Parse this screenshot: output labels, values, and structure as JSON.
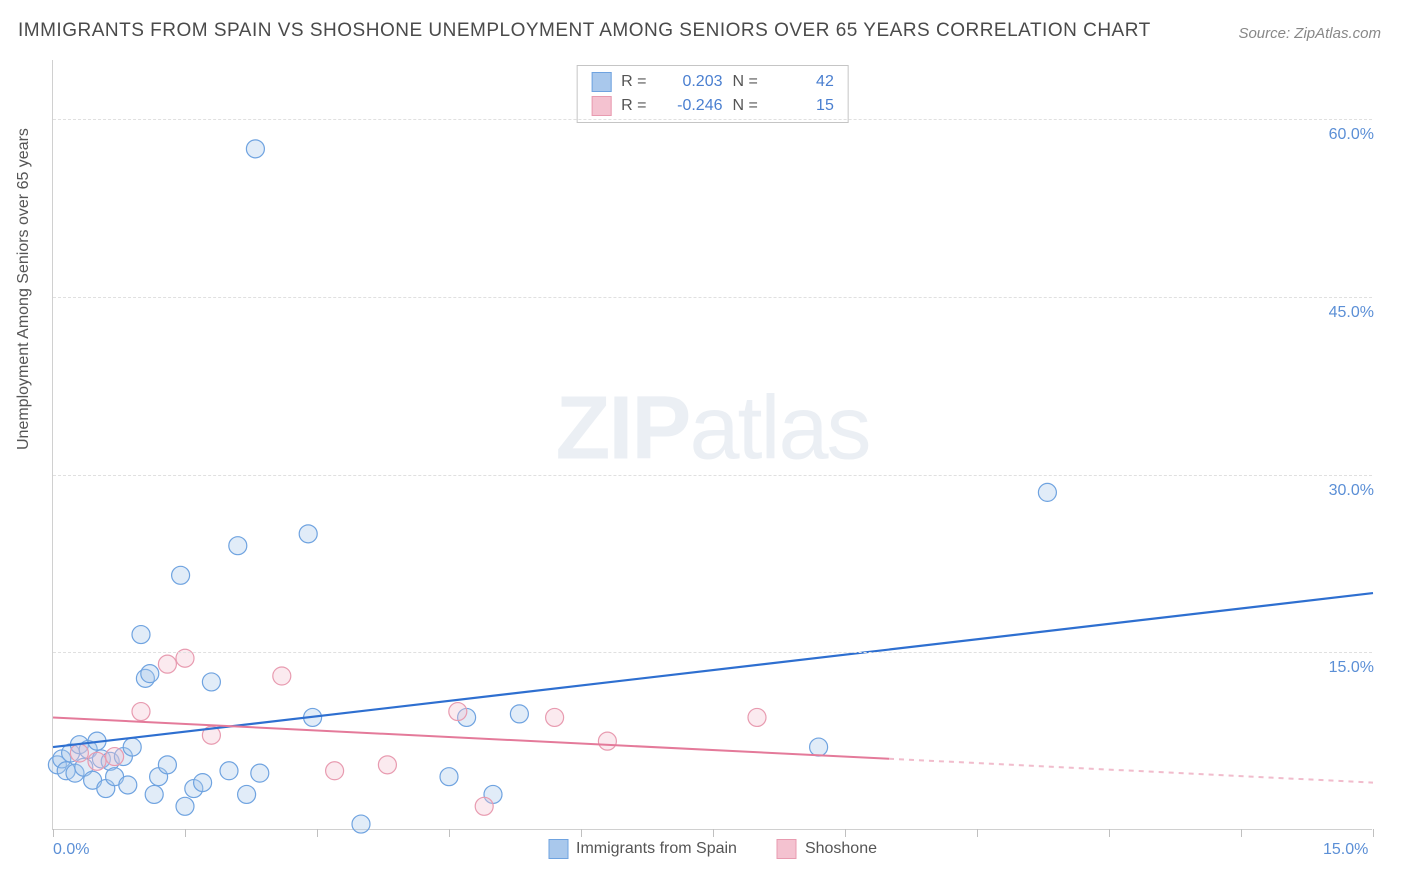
{
  "title": "IMMIGRANTS FROM SPAIN VS SHOSHONE UNEMPLOYMENT AMONG SENIORS OVER 65 YEARS CORRELATION CHART",
  "source": "Source: ZipAtlas.com",
  "y_axis_title": "Unemployment Among Seniors over 65 years",
  "watermark_bold": "ZIP",
  "watermark_light": "atlas",
  "chart": {
    "type": "scatter",
    "xlim": [
      0,
      15
    ],
    "ylim": [
      0,
      65
    ],
    "x_ticks": [
      0,
      1.5,
      3,
      4.5,
      6,
      7.5,
      9,
      10.5,
      12,
      13.5,
      15
    ],
    "x_tick_labels_shown": {
      "0": "0.0%",
      "15": "15.0%"
    },
    "y_gridlines": [
      15,
      30,
      45,
      60
    ],
    "y_tick_labels": {
      "15": "15.0%",
      "30": "30.0%",
      "45": "45.0%",
      "60": "60.0%"
    },
    "background_color": "#ffffff",
    "grid_color": "#e0e0e0",
    "axis_color": "#d0d0d0",
    "marker_radius": 9,
    "marker_stroke_width": 1.2,
    "marker_fill_opacity": 0.35,
    "series": [
      {
        "name": "Immigrants from Spain",
        "color_stroke": "#6fa3e0",
        "color_fill": "#a9c8ec",
        "r": 0.203,
        "n": 42,
        "trend_line": {
          "x1": 0,
          "y1": 7.0,
          "x2": 15,
          "y2": 20.0,
          "color": "#2e6fd0",
          "width": 2.2,
          "dash_from_x": null
        },
        "points": [
          [
            0.05,
            5.5
          ],
          [
            0.1,
            6.0
          ],
          [
            0.15,
            5.0
          ],
          [
            0.2,
            6.5
          ],
          [
            0.25,
            4.8
          ],
          [
            0.3,
            7.2
          ],
          [
            0.35,
            5.3
          ],
          [
            0.4,
            6.8
          ],
          [
            0.45,
            4.2
          ],
          [
            0.5,
            7.5
          ],
          [
            0.55,
            6.0
          ],
          [
            0.6,
            3.5
          ],
          [
            0.65,
            5.8
          ],
          [
            0.7,
            4.5
          ],
          [
            0.8,
            6.2
          ],
          [
            0.85,
            3.8
          ],
          [
            0.9,
            7.0
          ],
          [
            1.0,
            16.5
          ],
          [
            1.05,
            12.8
          ],
          [
            1.1,
            13.2
          ],
          [
            1.15,
            3.0
          ],
          [
            1.2,
            4.5
          ],
          [
            1.3,
            5.5
          ],
          [
            1.45,
            21.5
          ],
          [
            1.5,
            2.0
          ],
          [
            1.6,
            3.5
          ],
          [
            1.7,
            4.0
          ],
          [
            1.8,
            12.5
          ],
          [
            2.0,
            5.0
          ],
          [
            2.1,
            24.0
          ],
          [
            2.2,
            3.0
          ],
          [
            2.3,
            57.5
          ],
          [
            2.35,
            4.8
          ],
          [
            2.9,
            25.0
          ],
          [
            2.95,
            9.5
          ],
          [
            3.5,
            0.5
          ],
          [
            4.5,
            4.5
          ],
          [
            4.7,
            9.5
          ],
          [
            5.0,
            3.0
          ],
          [
            5.3,
            9.8
          ],
          [
            8.7,
            7.0
          ],
          [
            11.3,
            28.5
          ]
        ]
      },
      {
        "name": "Shoshone",
        "color_stroke": "#e89bb0",
        "color_fill": "#f4c2d0",
        "r": -0.246,
        "n": 15,
        "trend_line": {
          "x1": 0,
          "y1": 9.5,
          "x2": 15,
          "y2": 4.0,
          "color": "#e47a9a",
          "width": 2,
          "dash_from_x": 9.5
        },
        "points": [
          [
            0.3,
            6.5
          ],
          [
            0.5,
            5.8
          ],
          [
            0.7,
            6.2
          ],
          [
            1.0,
            10.0
          ],
          [
            1.3,
            14.0
          ],
          [
            1.5,
            14.5
          ],
          [
            1.8,
            8.0
          ],
          [
            2.6,
            13.0
          ],
          [
            3.2,
            5.0
          ],
          [
            3.8,
            5.5
          ],
          [
            4.6,
            10.0
          ],
          [
            4.9,
            2.0
          ],
          [
            5.7,
            9.5
          ],
          [
            6.3,
            7.5
          ],
          [
            8.0,
            9.5
          ]
        ]
      }
    ]
  },
  "legend_top": {
    "r_label": "R =",
    "n_label": "N ="
  },
  "colors": {
    "text_title": "#4a4a4a",
    "text_source": "#888888",
    "text_axis": "#555555",
    "value_color": "#4a7fd0"
  }
}
